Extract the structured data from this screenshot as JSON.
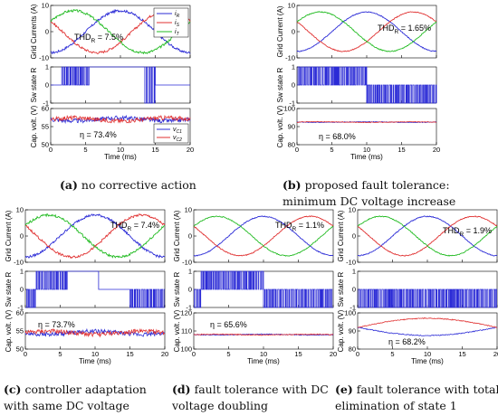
{
  "figure": {
    "shared": {
      "currents_ylabel": "Grid Current (A)",
      "currents_ylabel_a": "Grid Currents (A)",
      "sw_ylabel": "Sw state R",
      "cap_ylabel": "Cap. volt. (V)",
      "time_xlabel": "Time (ms)",
      "current_legend": [
        "i_R",
        "i_S",
        "i_T"
      ],
      "cap_legend": [
        "v_C1",
        "v_C2"
      ],
      "colors": {
        "R": "#2b2bd6",
        "S": "#e03030",
        "T": "#22bb22",
        "C1": "#2b2bd6",
        "C2": "#e03030"
      }
    },
    "panels": [
      {
        "id": "a",
        "caption_letter": "(a)",
        "caption_text": [
          "no corrective action"
        ],
        "thd_prefix": "THD",
        "thd_sub": "R",
        "thd_value": "= 7.5%",
        "eta_label": "η = 73.4%"
      },
      {
        "id": "b",
        "caption_letter": "(b)",
        "caption_text": [
          "proposed fault tolerance:",
          "minimum DC voltage increase"
        ],
        "thd_prefix": "THD",
        "thd_sub": "R",
        "thd_value": "= 1.65%",
        "eta_label": "η = 68.0%"
      },
      {
        "id": "c",
        "caption_letter": "(c)",
        "caption_text": [
          "controller adaptation",
          "with same DC voltage"
        ],
        "thd_prefix": "THD",
        "thd_sub": "R",
        "thd_value": "= 7.4%",
        "eta_label": "η = 73.7%"
      },
      {
        "id": "d",
        "caption_letter": "(d)",
        "caption_text": [
          "fault tolerance with DC",
          "voltage doubling"
        ],
        "thd_prefix": "THD",
        "thd_sub": "R",
        "thd_value": "= 1.1%",
        "eta_label": "η = 65.6%"
      },
      {
        "id": "e",
        "caption_letter": "(e)",
        "caption_text": [
          "fault tolerance with total",
          "elimination of state 1"
        ],
        "thd_prefix": "THD",
        "thd_sub": "R",
        "thd_value": "= 1.9%",
        "eta_label": "η = 68.2%"
      }
    ]
  },
  "chart_data": [
    {
      "panel": "a",
      "type": "line",
      "subplots": [
        {
          "name": "grid-currents",
          "ylabel": "Grid Currents (A)",
          "xlim": [
            0,
            20
          ],
          "ylim": [
            -10,
            10
          ],
          "yticks": [
            -10,
            0,
            10
          ],
          "series": [
            {
              "name": "i_R",
              "amplitude": 8,
              "frequency_hz": 50,
              "phase_deg": -90
            },
            {
              "name": "i_S",
              "amplitude": 8,
              "frequency_hz": 50,
              "phase_deg": 150
            },
            {
              "name": "i_T",
              "amplitude": 8,
              "frequency_hz": 50,
              "phase_deg": 30
            }
          ]
        },
        {
          "name": "switching-state",
          "ylabel": "Sw state R",
          "xlim": [
            0,
            20
          ],
          "ylim": [
            -1,
            1
          ],
          "yticks": [
            -1,
            0,
            1
          ],
          "segments": [
            [
              0,
              1.5,
              0
            ],
            [
              1.5,
              5.5,
              "pwm 1/0"
            ],
            [
              5.5,
              13.5,
              1
            ],
            [
              13.5,
              15,
              "pwm 1/-1"
            ],
            [
              15,
              20,
              0
            ]
          ]
        },
        {
          "name": "capacitor-voltages",
          "ylabel": "Cap. volt. (V)",
          "xlim": [
            0,
            20
          ],
          "ylim": [
            50,
            60
          ],
          "yticks": [
            50,
            55,
            60
          ],
          "series": [
            {
              "name": "v_C1",
              "mean": 57,
              "ripple": 1.2
            },
            {
              "name": "v_C2",
              "mean": 57,
              "ripple": 1.2
            }
          ]
        }
      ],
      "xlabel": "Time (ms)",
      "xticks": [
        0,
        5,
        10,
        15,
        20
      ]
    },
    {
      "panel": "b",
      "type": "line",
      "subplots": [
        {
          "name": "grid-currents",
          "ylabel": "Grid Current (A)",
          "xlim": [
            0,
            20
          ],
          "ylim": [
            -10,
            10
          ],
          "yticks": [
            -10,
            0,
            10
          ],
          "series": [
            {
              "name": "i_R",
              "amplitude": 7.5,
              "frequency_hz": 50,
              "phase_deg": -90
            },
            {
              "name": "i_S",
              "amplitude": 7.5,
              "frequency_hz": 50,
              "phase_deg": 150
            },
            {
              "name": "i_T",
              "amplitude": 7.5,
              "frequency_hz": 50,
              "phase_deg": 30
            }
          ]
        },
        {
          "name": "switching-state",
          "ylabel": "Sw state R",
          "xlim": [
            0,
            20
          ],
          "ylim": [
            -1,
            1
          ],
          "yticks": [
            -1,
            0,
            1
          ],
          "segments": [
            [
              0,
              10,
              "pwm 1/0"
            ],
            [
              10,
              20,
              "pwm 0/-1"
            ]
          ]
        },
        {
          "name": "capacitor-voltages",
          "ylabel": "Cap. volt. (V)",
          "xlim": [
            0,
            20
          ],
          "ylim": [
            80,
            100
          ],
          "yticks": [
            80,
            90,
            100
          ],
          "series": [
            {
              "name": "v_C1",
              "mean": 92.5,
              "ripple": 0.4
            },
            {
              "name": "v_C2",
              "mean": 92.5,
              "ripple": 0.4
            }
          ]
        }
      ],
      "xlabel": "Time (ms)",
      "xticks": [
        0,
        5,
        10,
        15,
        20
      ]
    },
    {
      "panel": "c",
      "type": "line",
      "subplots": [
        {
          "name": "grid-currents",
          "ylabel": "Grid Current (A)",
          "xlim": [
            0,
            20
          ],
          "ylim": [
            -10,
            10
          ],
          "yticks": [
            -10,
            0,
            10
          ],
          "series": [
            {
              "name": "i_R",
              "amplitude": 8,
              "frequency_hz": 50,
              "phase_deg": -90
            },
            {
              "name": "i_S",
              "amplitude": 8,
              "frequency_hz": 50,
              "phase_deg": 150
            },
            {
              "name": "i_T",
              "amplitude": 8,
              "frequency_hz": 50,
              "phase_deg": 30
            }
          ]
        },
        {
          "name": "switching-state",
          "ylabel": "Sw state R",
          "xlim": [
            0,
            20
          ],
          "ylim": [
            -1,
            1
          ],
          "yticks": [
            -1,
            0,
            1
          ],
          "segments": [
            [
              0,
              1.5,
              "pwm 0/-1"
            ],
            [
              1.5,
              6,
              "pwm 1/0"
            ],
            [
              6,
              10.5,
              1
            ],
            [
              10.5,
              15,
              0
            ],
            [
              15,
              20,
              "pwm 0/-1"
            ]
          ]
        },
        {
          "name": "capacitor-voltages",
          "ylabel": "Cap. volt. (V)",
          "xlim": [
            0,
            20
          ],
          "ylim": [
            50,
            60
          ],
          "yticks": [
            50,
            55,
            60
          ],
          "series": [
            {
              "name": "v_C1",
              "mean": 54.5,
              "ripple": 1.2
            },
            {
              "name": "v_C2",
              "mean": 54.5,
              "ripple": 1.2
            }
          ]
        }
      ],
      "xlabel": "Time (ms)",
      "xticks": [
        0,
        5,
        10,
        15,
        20
      ]
    },
    {
      "panel": "d",
      "type": "line",
      "subplots": [
        {
          "name": "grid-currents",
          "ylabel": "Grid Current (A)",
          "xlim": [
            0,
            20
          ],
          "ylim": [
            -10,
            10
          ],
          "yticks": [
            -10,
            0,
            10
          ],
          "series": [
            {
              "name": "i_R",
              "amplitude": 7.5,
              "frequency_hz": 50,
              "phase_deg": -90
            },
            {
              "name": "i_S",
              "amplitude": 7.5,
              "frequency_hz": 50,
              "phase_deg": 150
            },
            {
              "name": "i_T",
              "amplitude": 7.5,
              "frequency_hz": 50,
              "phase_deg": 30
            }
          ]
        },
        {
          "name": "switching-state",
          "ylabel": "Sw state R",
          "xlim": [
            0,
            20
          ],
          "ylim": [
            -1,
            1
          ],
          "yticks": [
            -1,
            0,
            1
          ],
          "segments": [
            [
              0,
              1,
              "pwm 0/-1"
            ],
            [
              1,
              10,
              "pwm 1/0"
            ],
            [
              10,
              20,
              "pwm 0/-1"
            ]
          ]
        },
        {
          "name": "capacitor-voltages",
          "ylabel": "Cap. volt. (V)",
          "xlim": [
            0,
            20
          ],
          "ylim": [
            100,
            120
          ],
          "yticks": [
            100,
            110,
            120
          ],
          "series": [
            {
              "name": "v_C1",
              "mean": 108,
              "ripple": 0.5
            },
            {
              "name": "v_C2",
              "mean": 108,
              "ripple": 0.5
            }
          ]
        }
      ],
      "xlabel": "Time (ms)",
      "xticks": [
        0,
        5,
        10,
        15,
        20
      ]
    },
    {
      "panel": "e",
      "type": "line",
      "subplots": [
        {
          "name": "grid-currents",
          "ylabel": "Grid Current (A)",
          "xlim": [
            0,
            20
          ],
          "ylim": [
            -10,
            10
          ],
          "yticks": [
            -10,
            0,
            10
          ],
          "series": [
            {
              "name": "i_R",
              "amplitude": 7.5,
              "frequency_hz": 50,
              "phase_deg": -90
            },
            {
              "name": "i_S",
              "amplitude": 7.5,
              "frequency_hz": 50,
              "phase_deg": 150
            },
            {
              "name": "i_T",
              "amplitude": 7.5,
              "frequency_hz": 50,
              "phase_deg": 30
            }
          ]
        },
        {
          "name": "switching-state",
          "ylabel": "Sw state R",
          "xlim": [
            0,
            20
          ],
          "ylim": [
            -1,
            1
          ],
          "yticks": [
            -1,
            0,
            1
          ],
          "segments": [
            [
              0,
              20,
              "pwm 0/-1"
            ]
          ]
        },
        {
          "name": "capacitor-voltages",
          "ylabel": "Cap. volt. (V)",
          "xlim": [
            0,
            20
          ],
          "ylim": [
            80,
            100
          ],
          "yticks": [
            80,
            90,
            100
          ],
          "series": [
            {
              "name": "v_C1",
              "start": 92,
              "mid": 87.5,
              "end": 92,
              "ripple": 0.5
            },
            {
              "name": "v_C2",
              "start": 92,
              "mid": 97,
              "end": 92,
              "ripple": 0.5
            }
          ]
        }
      ],
      "xlabel": "Time (ms)",
      "xticks": [
        0,
        5,
        10,
        15,
        20
      ]
    }
  ]
}
